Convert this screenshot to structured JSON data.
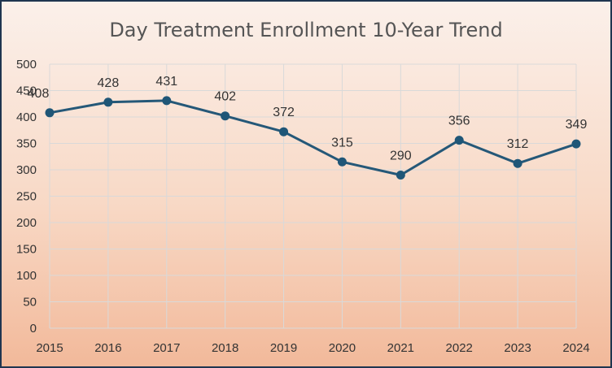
{
  "chart_data": {
    "type": "line",
    "title": "Day Treatment Enrollment 10-Year Trend",
    "xlabel": "",
    "ylabel": "",
    "categories": [
      "2015",
      "2016",
      "2017",
      "2018",
      "2019",
      "2020",
      "2021",
      "2022",
      "2023",
      "2024"
    ],
    "series": [
      {
        "name": "Enrollment",
        "values": [
          408,
          428,
          431,
          402,
          372,
          315,
          290,
          356,
          312,
          349
        ]
      }
    ],
    "ylim": [
      0,
      500
    ],
    "yticks": [
      0,
      50,
      100,
      150,
      200,
      250,
      300,
      350,
      400,
      450,
      500
    ],
    "grid": true,
    "legend": "none",
    "colors": {
      "line": "#255878",
      "marker": "#1f5677",
      "grid": "#d9d9d9",
      "frame": "#1f3550"
    }
  }
}
